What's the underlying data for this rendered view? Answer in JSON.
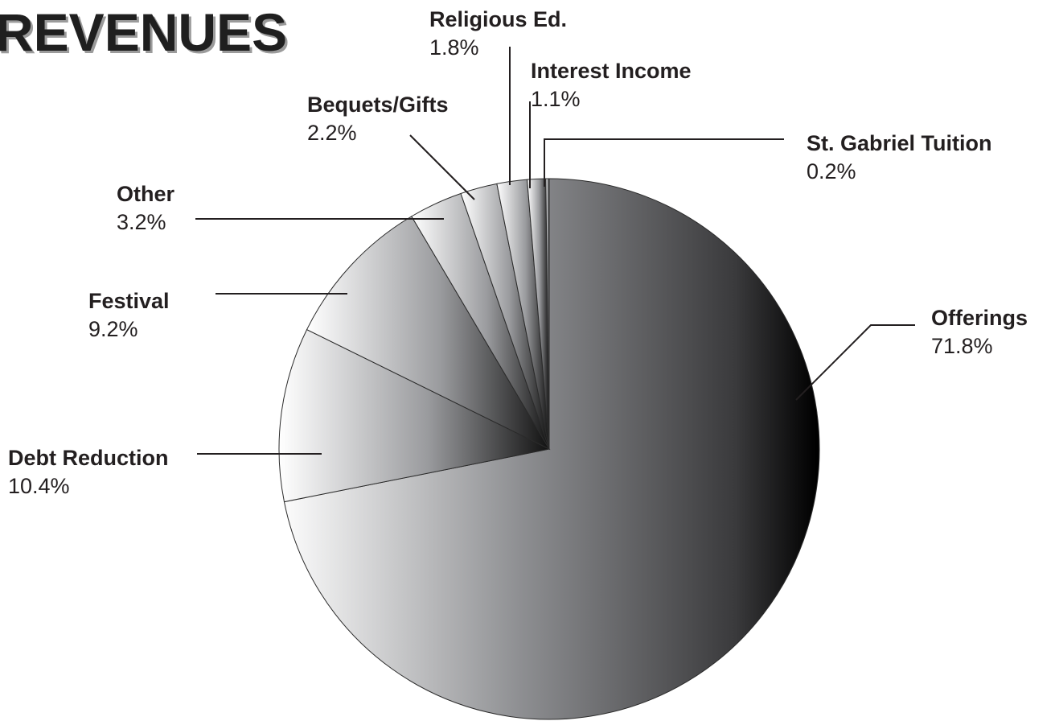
{
  "chart_data": {
    "type": "pie",
    "title": "REVENUES",
    "slices": [
      {
        "label": "Offerings",
        "value": 71.8,
        "value_label": "71.8%"
      },
      {
        "label": "Debt Reduction",
        "value": 10.4,
        "value_label": "10.4%"
      },
      {
        "label": "Festival",
        "value": 9.2,
        "value_label": "9.2%"
      },
      {
        "label": "Other",
        "value": 3.2,
        "value_label": "3.2%"
      },
      {
        "label": "Bequets/Gifts",
        "value": 2.2,
        "value_label": "2.2%"
      },
      {
        "label": "Religious Ed.",
        "value": 1.8,
        "value_label": "1.8%"
      },
      {
        "label": "Interest Income",
        "value": 1.1,
        "value_label": "1.1%"
      },
      {
        "label": "St. Gabriel Tuition",
        "value": 0.2,
        "value_label": "0.2%"
      }
    ],
    "legend": "none",
    "colors": {
      "fill_light": "#ffffff",
      "fill_mid": "#8e8f92",
      "fill_dark": "#000000",
      "stroke": "#2b2b2b",
      "title": "#1f1f1f",
      "title_shadow": "#9b9b9b"
    }
  }
}
